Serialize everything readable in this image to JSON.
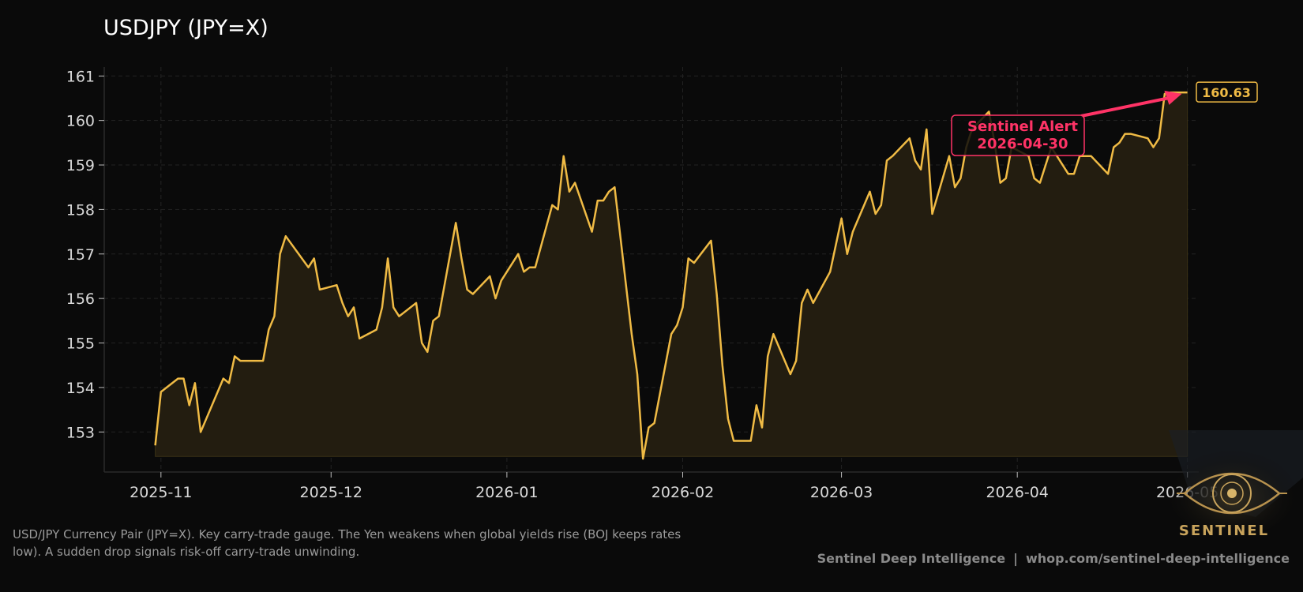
{
  "title": "USDJPY (JPY=X)",
  "caption": "USD/JPY Currency Pair (JPY=X). Key carry-trade gauge. The Yen weakens when global yields rise (BOJ keeps rates low). A sudden drop signals risk-off carry-trade unwinding.",
  "footer": {
    "brand": "Sentinel Deep Intelligence",
    "separator": "|",
    "url": "whop.com/sentinel-deep-intelligence"
  },
  "logo": {
    "text": "SENTINEL",
    "icon": "eye-emblem-icon"
  },
  "colors": {
    "background": "#0a0a0a",
    "line": "#f0bb45",
    "fill": "#231d10",
    "alert": "#ff3366",
    "axis_text": "#d9d9d9"
  },
  "chart_data": {
    "type": "line",
    "title": "USDJPY (JPY=X)",
    "xlabel": "",
    "ylabel": "",
    "ylim": [
      152.1,
      161.2
    ],
    "xlim": [
      "2025-10-22",
      "2026-05-03"
    ],
    "x_ticks": [
      "2025-11",
      "2025-12",
      "2026-01",
      "2026-02",
      "2026-03",
      "2026-04",
      "2026-05"
    ],
    "y_ticks": [
      153,
      154,
      155,
      156,
      157,
      158,
      159,
      160,
      161
    ],
    "grid": true,
    "last_value_label": "160.63",
    "annotation": {
      "text": [
        "Sentinel Alert",
        "2026-04-30"
      ],
      "date": "2026-04-30",
      "value": 160.6
    },
    "series": [
      {
        "x": [
          "2025-10-31",
          "2025-11-01",
          "2025-11-04",
          "2025-11-05",
          "2025-11-06",
          "2025-11-07",
          "2025-11-08",
          "2025-11-12",
          "2025-11-13",
          "2025-11-14",
          "2025-11-15",
          "2025-11-16",
          "2025-11-19",
          "2025-11-20",
          "2025-11-21",
          "2025-11-22",
          "2025-11-23",
          "2025-11-27",
          "2025-11-28",
          "2025-11-29",
          "2025-12-02",
          "2025-12-03",
          "2025-12-04",
          "2025-12-05",
          "2025-12-06",
          "2025-12-09",
          "2025-12-10",
          "2025-12-11",
          "2025-12-12",
          "2025-12-13",
          "2025-12-16",
          "2025-12-17",
          "2025-12-18",
          "2025-12-19",
          "2025-12-20",
          "2025-12-23",
          "2025-12-24",
          "2025-12-25",
          "2025-12-26",
          "2025-12-29",
          "2025-12-30",
          "2025-12-31",
          "2026-01-03",
          "2026-01-04",
          "2026-01-05",
          "2026-01-06",
          "2026-01-09",
          "2026-01-10",
          "2026-01-11",
          "2026-01-12",
          "2026-01-13",
          "2026-01-16",
          "2026-01-17",
          "2026-01-18",
          "2026-01-19",
          "2026-01-20",
          "2026-01-23",
          "2026-01-24",
          "2026-01-25",
          "2026-01-26",
          "2026-01-27",
          "2026-01-30",
          "2026-01-31",
          "2026-02-01",
          "2026-02-02",
          "2026-02-03",
          "2026-02-06",
          "2026-02-07",
          "2026-02-08",
          "2026-02-09",
          "2026-02-10",
          "2026-02-13",
          "2026-02-14",
          "2026-02-15",
          "2026-02-16",
          "2026-02-17",
          "2026-02-20",
          "2026-02-21",
          "2026-02-22",
          "2026-02-23",
          "2026-02-24",
          "2026-02-27",
          "2026-02-28",
          "2026-03-01",
          "2026-03-02",
          "2026-03-03",
          "2026-03-06",
          "2026-03-07",
          "2026-03-08",
          "2026-03-09",
          "2026-03-10",
          "2026-03-13",
          "2026-03-14",
          "2026-03-15",
          "2026-03-16",
          "2026-03-17",
          "2026-03-20",
          "2026-03-21",
          "2026-03-22",
          "2026-03-23",
          "2026-03-24",
          "2026-03-27",
          "2026-03-28",
          "2026-03-29",
          "2026-03-30",
          "2026-03-31",
          "2026-04-03",
          "2026-04-04",
          "2026-04-05",
          "2026-04-06",
          "2026-04-07",
          "2026-04-10",
          "2026-04-11",
          "2026-04-12",
          "2026-04-13",
          "2026-04-14",
          "2026-04-17",
          "2026-04-18",
          "2026-04-19",
          "2026-04-20",
          "2026-04-21",
          "2026-04-24",
          "2026-04-25",
          "2026-04-26",
          "2026-04-27",
          "2026-04-28",
          "2026-05-01",
          "2026-05-02",
          "2026-05-03"
        ],
        "values": [
          152.7,
          153.9,
          154.2,
          154.2,
          153.6,
          154.1,
          153.0,
          154.2,
          154.1,
          154.7,
          154.6,
          154.6,
          154.6,
          155.3,
          155.6,
          157.0,
          157.4,
          156.7,
          156.9,
          156.2,
          156.3,
          155.9,
          155.6,
          155.8,
          155.1,
          155.3,
          155.8,
          156.9,
          155.8,
          155.6,
          155.9,
          155.0,
          154.8,
          155.5,
          155.6,
          157.7,
          156.9,
          156.2,
          156.1,
          156.5,
          156.0,
          156.4,
          157.0,
          156.6,
          156.7,
          156.7,
          158.1,
          158.0,
          159.2,
          158.4,
          158.6,
          157.5,
          158.2,
          158.2,
          158.4,
          158.5,
          155.2,
          154.3,
          152.4,
          153.1,
          153.2,
          155.2,
          155.4,
          155.8,
          156.9,
          156.8,
          157.3,
          156.1,
          154.5,
          153.3,
          152.8,
          152.8,
          153.6,
          153.1,
          154.7,
          155.2,
          154.3,
          154.6,
          155.9,
          156.2,
          155.9,
          156.6,
          157.2,
          157.8,
          157.0,
          157.5,
          158.4,
          157.9,
          158.1,
          159.1,
          159.2,
          159.6,
          159.1,
          158.9,
          159.8,
          157.9,
          159.2,
          158.5,
          158.7,
          159.4,
          159.8,
          160.2,
          159.5,
          158.6,
          158.7,
          159.4,
          159.2,
          158.7,
          158.6,
          159.0,
          159.4,
          158.8,
          158.8,
          159.2,
          159.2,
          159.2,
          158.8,
          159.4,
          159.5,
          159.7,
          159.7,
          159.6,
          159.4,
          159.6,
          160.6,
          160.63,
          160.63,
          160.63,
          160.63
        ]
      }
    ]
  }
}
